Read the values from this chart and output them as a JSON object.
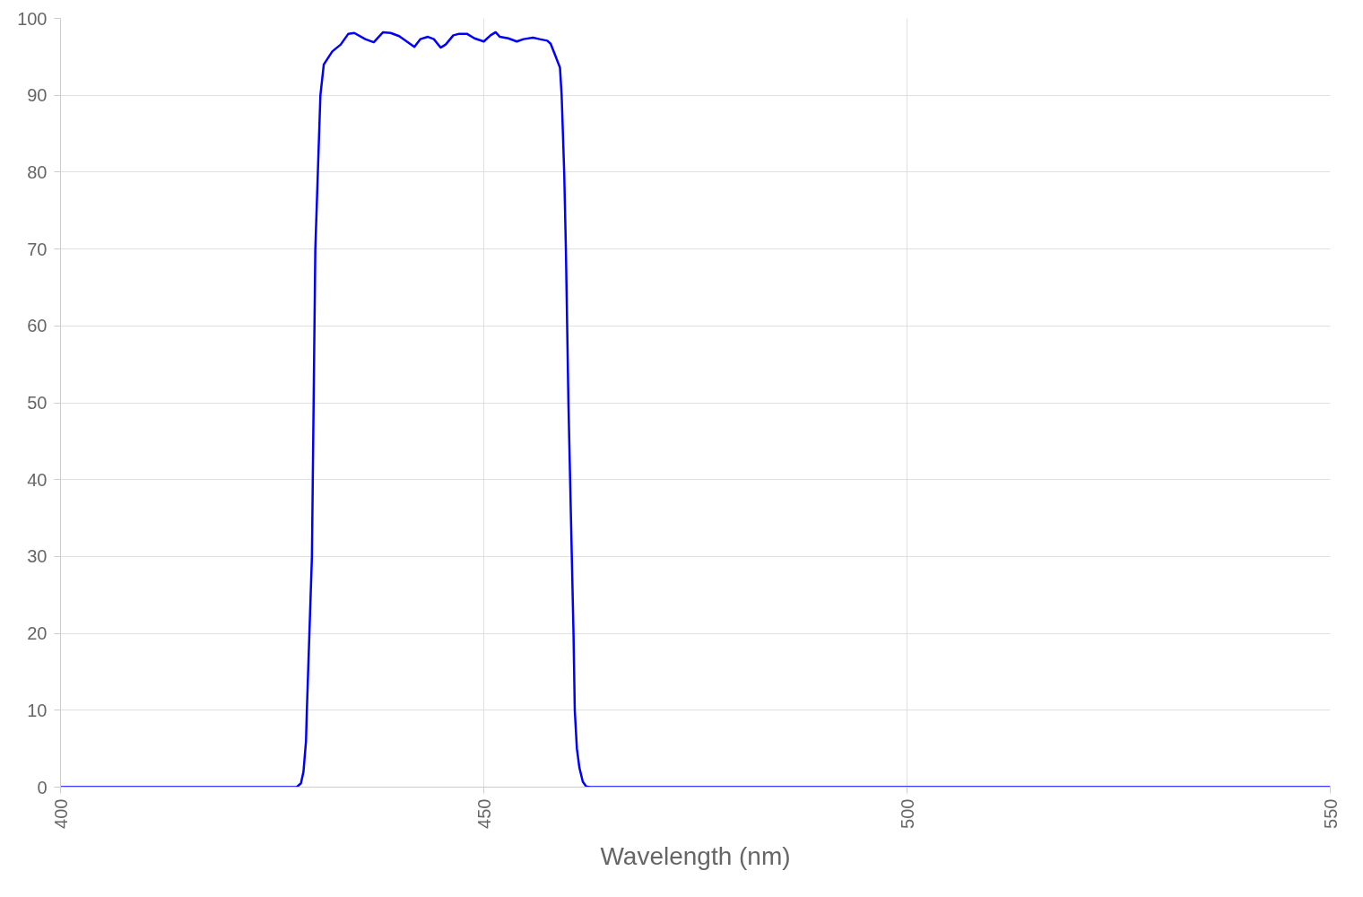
{
  "chart_data": {
    "type": "line",
    "xlabel": "Wavelength (nm)",
    "x": [
      400,
      427.9,
      428.4,
      428.7,
      429.0,
      429.1,
      429.4,
      429.7,
      429.9,
      430.1,
      430.4,
      430.7,
      431.1,
      432.1,
      433.1,
      434.0,
      434.7,
      436.0,
      437.0,
      438.1,
      439.0,
      440.0,
      440.9,
      441.8,
      442.5,
      443.4,
      444.1,
      444.9,
      445.5,
      446.4,
      447.1,
      448.0,
      448.9,
      450.0,
      450.8,
      451.4,
      451.9,
      452.9,
      453.9,
      454.7,
      455.8,
      456.6,
      457.5,
      457.9,
      458.4,
      459.0,
      459.2,
      459.5,
      459.7,
      460.0,
      460.4,
      460.6,
      460.75,
      461.0,
      461.3,
      461.7,
      462.1,
      462.5,
      550
    ],
    "series": [
      {
        "color": "#0000ff",
        "values": [
          0,
          0,
          0.5,
          2,
          6,
          10,
          20,
          30,
          50,
          70,
          80,
          90,
          94.0,
          95.7,
          96.6,
          98.0,
          98.1,
          97.3,
          96.9,
          98.2,
          98.1,
          97.7,
          97.0,
          96.3,
          97.3,
          97.6,
          97.3,
          96.2,
          96.6,
          97.8,
          98.0,
          98.0,
          97.4,
          97.0,
          97.8,
          98.2,
          97.6,
          97.4,
          97.0,
          97.3,
          97.5,
          97.3,
          97.1,
          96.7,
          95.3,
          93.6,
          90,
          80,
          70,
          50,
          30,
          20,
          10,
          5,
          2.5,
          0.7,
          0.1,
          0,
          0
        ]
      }
    ],
    "xlim": [
      400,
      550
    ],
    "ylim": [
      0,
      100
    ],
    "xticks": [
      400,
      450,
      500,
      550
    ],
    "yticks": [
      0,
      10,
      20,
      30,
      40,
      50,
      60,
      70,
      80,
      90,
      100
    ],
    "grid": true,
    "line_style": "solid"
  }
}
